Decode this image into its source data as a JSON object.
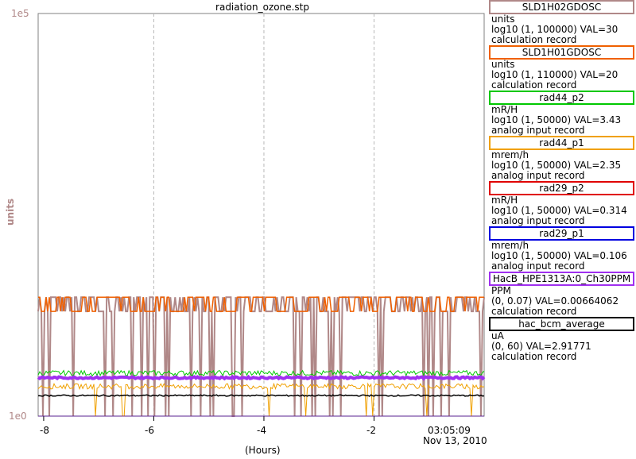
{
  "chart_data": {
    "type": "line",
    "title": "radiation_ozone.stp",
    "ylabel": "units",
    "xlabel": "(Hours)",
    "y_scale": "log",
    "ylim": [
      1,
      100000
    ],
    "y_ticks": [
      "1e5",
      "1e0"
    ],
    "xlim": [
      -8.1,
      0
    ],
    "x_ticks": [
      "-8",
      "-6",
      "-4",
      "-2"
    ],
    "timestamp_time": "03:05:09",
    "timestamp_date": "Nov 13, 2010",
    "grid": true,
    "series": [
      {
        "name": "SLD1H02GDOSC",
        "unit": "units",
        "range": "log10 (1, 100000) VAL=30",
        "record": "calculation record",
        "color": "#b08888",
        "approx_level": 30,
        "notes": "steps between ~30 and dropouts to ~1"
      },
      {
        "name": "SLD1H01GDOSC",
        "unit": "units",
        "range": "log10 (1, 110000) VAL=20",
        "record": "calculation record",
        "color": "#f06000",
        "approx_level": 20,
        "notes": "steps between ~30 and ~20"
      },
      {
        "name": "rad44_p2",
        "unit": "mR/H",
        "range": "log10 (1, 50000) VAL=3.43",
        "record": "analog input record",
        "color": "#00c800",
        "approx_level": 3.43
      },
      {
        "name": "rad44_p1",
        "unit": "mrem/h",
        "range": "log10 (1, 50000) VAL=2.35",
        "record": "analog input record",
        "color": "#f0a000",
        "approx_level": 2.35
      },
      {
        "name": "rad29_p2",
        "unit": "mR/H",
        "range": "log10 (1, 50000) VAL=0.314",
        "record": "analog input record",
        "color": "#e00000",
        "approx_level": 0.314
      },
      {
        "name": "rad29_p1",
        "unit": "mrem/h",
        "range": "log10 (1, 50000) VAL=0.106",
        "record": "analog input record",
        "color": "#0000e0",
        "approx_level": 0.106
      },
      {
        "name": "HacB_HPE1313A:0_Ch30PPM",
        "unit": "PPM",
        "range": "(0, 0.07) VAL=0.00664062",
        "record": "calculation record",
        "color": "#a030f0",
        "approx_level": 0.00664062
      },
      {
        "name": "hac_bcm_average",
        "unit": "uA",
        "range": "(0, 60) VAL=2.91771",
        "record": "calculation record",
        "color": "#000000",
        "approx_level": 2.91771
      }
    ]
  }
}
